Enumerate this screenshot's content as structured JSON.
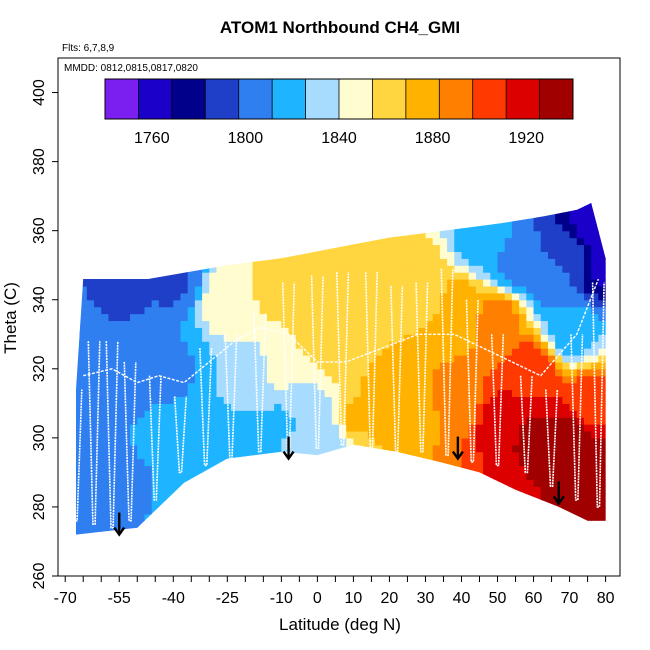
{
  "chart_data": {
    "type": "heatmap",
    "title": "ATOM1 Northbound CH4_GMI",
    "xlabel": "Latitude (deg N)",
    "ylabel": "Theta (C)",
    "annotations": {
      "flights": "Flts: 6,7,8,9",
      "dates": "MMDD: 0812,0815,0817,0820"
    },
    "xlim": [
      -72,
      84
    ],
    "ylim": [
      260,
      410
    ],
    "x_ticks": [
      -70,
      -55,
      -40,
      -25,
      -10,
      0,
      10,
      20,
      30,
      40,
      50,
      60,
      70,
      80
    ],
    "x_tick_labels": [
      "-70",
      "-55",
      "-40",
      "-25",
      "-10",
      "0",
      "10",
      "20",
      "30",
      "40",
      "50",
      "60",
      "70",
      "80"
    ],
    "x_minor_ticks": [
      -65,
      -60,
      -50,
      -45,
      -35,
      -30,
      -20,
      -15,
      -5,
      5,
      15,
      25,
      35,
      45,
      55,
      65,
      75
    ],
    "y_ticks": [
      260,
      280,
      300,
      320,
      340,
      360,
      380,
      400
    ],
    "y_tick_labels": [
      "260",
      "280",
      "300",
      "320",
      "340",
      "360",
      "380",
      "400"
    ],
    "colorbar": {
      "min": 1740,
      "max": 1940,
      "bins": 14,
      "ticks": [
        1760,
        1800,
        1840,
        1880,
        1920
      ],
      "tick_labels": [
        "1760",
        "1800",
        "1840",
        "1880",
        "1920"
      ],
      "colors": [
        "#7a1ff0",
        "#1a00c8",
        "#00008b",
        "#1f3fc8",
        "#2f7ff0",
        "#1fb4ff",
        "#a8dcff",
        "#fffcd0",
        "#ffd540",
        "#ffb300",
        "#ff8000",
        "#ff3a00",
        "#dd0000",
        "#a00000"
      ]
    },
    "curtain_top": [
      [
        -67,
        314
      ],
      [
        -65,
        346
      ],
      [
        -47,
        346
      ],
      [
        -25,
        350
      ],
      [
        -10,
        352
      ],
      [
        5,
        355
      ],
      [
        20,
        358
      ],
      [
        35,
        360
      ],
      [
        50,
        362
      ],
      [
        62,
        364
      ],
      [
        72,
        366
      ],
      [
        76,
        368
      ],
      [
        80,
        352
      ]
    ],
    "curtain_bottom": [
      [
        -67,
        272
      ],
      [
        -50,
        274
      ],
      [
        -37,
        287
      ],
      [
        -25,
        294
      ],
      [
        -10,
        296
      ],
      [
        0,
        295
      ],
      [
        10,
        298
      ],
      [
        22,
        296
      ],
      [
        34,
        293
      ],
      [
        45,
        290
      ],
      [
        55,
        285
      ],
      [
        67,
        280
      ],
      [
        75,
        276
      ],
      [
        80,
        276
      ]
    ],
    "field": [
      {
        "lat": -70,
        "theta": 300,
        "ch4": 1808
      },
      {
        "lat": -70,
        "theta": 330,
        "ch4": 1803
      },
      {
        "lat": -65,
        "theta": 280,
        "ch4": 1810
      },
      {
        "lat": -55,
        "theta": 290,
        "ch4": 1810
      },
      {
        "lat": -55,
        "theta": 320,
        "ch4": 1805
      },
      {
        "lat": -55,
        "theta": 345,
        "ch4": 1793
      },
      {
        "lat": -45,
        "theta": 300,
        "ch4": 1812
      },
      {
        "lat": -40,
        "theta": 345,
        "ch4": 1796
      },
      {
        "lat": -40,
        "theta": 320,
        "ch4": 1810
      },
      {
        "lat": -30,
        "theta": 300,
        "ch4": 1818
      },
      {
        "lat": -25,
        "theta": 340,
        "ch4": 1850
      },
      {
        "lat": -20,
        "theta": 315,
        "ch4": 1830
      },
      {
        "lat": -20,
        "theta": 300,
        "ch4": 1820
      },
      {
        "lat": -10,
        "theta": 345,
        "ch4": 1862
      },
      {
        "lat": -10,
        "theta": 320,
        "ch4": 1842
      },
      {
        "lat": -10,
        "theta": 305,
        "ch4": 1825
      },
      {
        "lat": 0,
        "theta": 330,
        "ch4": 1862
      },
      {
        "lat": 0,
        "theta": 305,
        "ch4": 1830
      },
      {
        "lat": 5,
        "theta": 300,
        "ch4": 1838
      },
      {
        "lat": 10,
        "theta": 330,
        "ch4": 1868
      },
      {
        "lat": 10,
        "theta": 305,
        "ch4": 1872
      },
      {
        "lat": 20,
        "theta": 340,
        "ch4": 1868
      },
      {
        "lat": 20,
        "theta": 310,
        "ch4": 1878
      },
      {
        "lat": 30,
        "theta": 345,
        "ch4": 1866
      },
      {
        "lat": 30,
        "theta": 305,
        "ch4": 1882
      },
      {
        "lat": 40,
        "theta": 340,
        "ch4": 1872
      },
      {
        "lat": 40,
        "theta": 310,
        "ch4": 1888
      },
      {
        "lat": 45,
        "theta": 355,
        "ch4": 1820
      },
      {
        "lat": 50,
        "theta": 335,
        "ch4": 1892
      },
      {
        "lat": 50,
        "theta": 305,
        "ch4": 1920
      },
      {
        "lat": 55,
        "theta": 350,
        "ch4": 1805
      },
      {
        "lat": 60,
        "theta": 320,
        "ch4": 1908
      },
      {
        "lat": 60,
        "theta": 300,
        "ch4": 1928
      },
      {
        "lat": 65,
        "theta": 345,
        "ch4": 1802
      },
      {
        "lat": 70,
        "theta": 355,
        "ch4": 1790
      },
      {
        "lat": 70,
        "theta": 330,
        "ch4": 1820
      },
      {
        "lat": 70,
        "theta": 300,
        "ch4": 1935
      },
      {
        "lat": 75,
        "theta": 360,
        "ch4": 1760
      },
      {
        "lat": 75,
        "theta": 310,
        "ch4": 1905
      },
      {
        "lat": 78,
        "theta": 285,
        "ch4": 1935
      },
      {
        "lat": 80,
        "theta": 350,
        "ch4": 1765
      },
      {
        "lat": 80,
        "theta": 290,
        "ch4": 1930
      }
    ],
    "profiles": [
      {
        "lat": -67,
        "min": 276,
        "max": 314
      },
      {
        "lat": -62,
        "min": 275,
        "max": 328
      },
      {
        "lat": -57,
        "min": 274,
        "max": 328
      },
      {
        "lat": -52,
        "min": 276,
        "max": 322
      },
      {
        "lat": -45,
        "min": 282,
        "max": 318
      },
      {
        "lat": -38,
        "min": 290,
        "max": 312
      },
      {
        "lat": -31,
        "min": 292,
        "max": 326
      },
      {
        "lat": -24,
        "min": 294,
        "max": 330
      },
      {
        "lat": -16,
        "min": 296,
        "max": 336
      },
      {
        "lat": -8,
        "min": 297,
        "max": 345
      },
      {
        "lat": 0,
        "min": 297,
        "max": 347
      },
      {
        "lat": 7,
        "min": 298,
        "max": 348
      },
      {
        "lat": 15,
        "min": 297,
        "max": 348
      },
      {
        "lat": 22,
        "min": 296,
        "max": 344
      },
      {
        "lat": 29,
        "min": 296,
        "max": 345
      },
      {
        "lat": 36,
        "min": 295,
        "max": 349
      },
      {
        "lat": 43,
        "min": 293,
        "max": 340
      },
      {
        "lat": 50,
        "min": 292,
        "max": 330
      },
      {
        "lat": 58,
        "min": 290,
        "max": 318
      },
      {
        "lat": 65,
        "min": 286,
        "max": 314
      },
      {
        "lat": 72,
        "min": 282,
        "max": 330
      },
      {
        "lat": 78,
        "min": 280,
        "max": 345
      }
    ],
    "transects": [
      [
        [
          -65,
          318
        ],
        [
          -57,
          320
        ],
        [
          -50,
          316
        ],
        [
          -44,
          318
        ],
        [
          -37,
          316
        ],
        [
          -30,
          322
        ],
        [
          -23,
          328
        ],
        [
          -16,
          332
        ],
        [
          -8,
          330
        ],
        [
          0,
          322
        ],
        [
          8,
          322
        ],
        [
          18,
          326
        ],
        [
          28,
          330
        ],
        [
          38,
          330
        ],
        [
          46,
          326
        ],
        [
          54,
          322
        ],
        [
          62,
          318
        ],
        [
          72,
          330
        ],
        [
          78,
          346
        ]
      ]
    ],
    "markers": [
      {
        "lat": -55,
        "theta": 272
      },
      {
        "lat": -8,
        "theta": 294
      },
      {
        "lat": 39,
        "theta": 294
      },
      {
        "lat": 67,
        "theta": 281
      }
    ]
  }
}
